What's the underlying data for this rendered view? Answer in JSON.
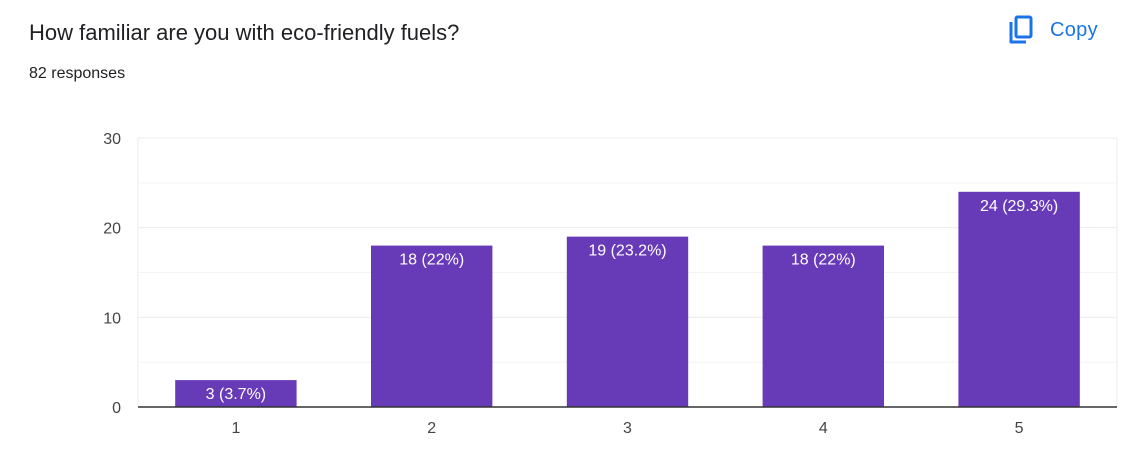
{
  "header": {
    "question": "How familiar are you with eco-friendly fuels?",
    "responses": "82 responses",
    "copy_label": "Copy",
    "copy_icon": "copy-icon"
  },
  "colors": {
    "bar": "#673ab7",
    "accent": "#1a73e8",
    "grid": "#ebebeb",
    "baseline": "#333333"
  },
  "chart_data": {
    "type": "bar",
    "categories": [
      "1",
      "2",
      "3",
      "4",
      "5"
    ],
    "values": [
      3,
      18,
      19,
      18,
      24
    ],
    "data_labels": [
      "3 (3.7%)",
      "18 (22%)",
      "19 (23.2%)",
      "18 (22%)",
      "24 (29.3%)"
    ],
    "title": "",
    "xlabel": "",
    "ylabel": "",
    "ylim": [
      0,
      30
    ],
    "yticks": [
      0,
      10,
      20,
      30
    ],
    "grid": true,
    "legend": "none"
  }
}
